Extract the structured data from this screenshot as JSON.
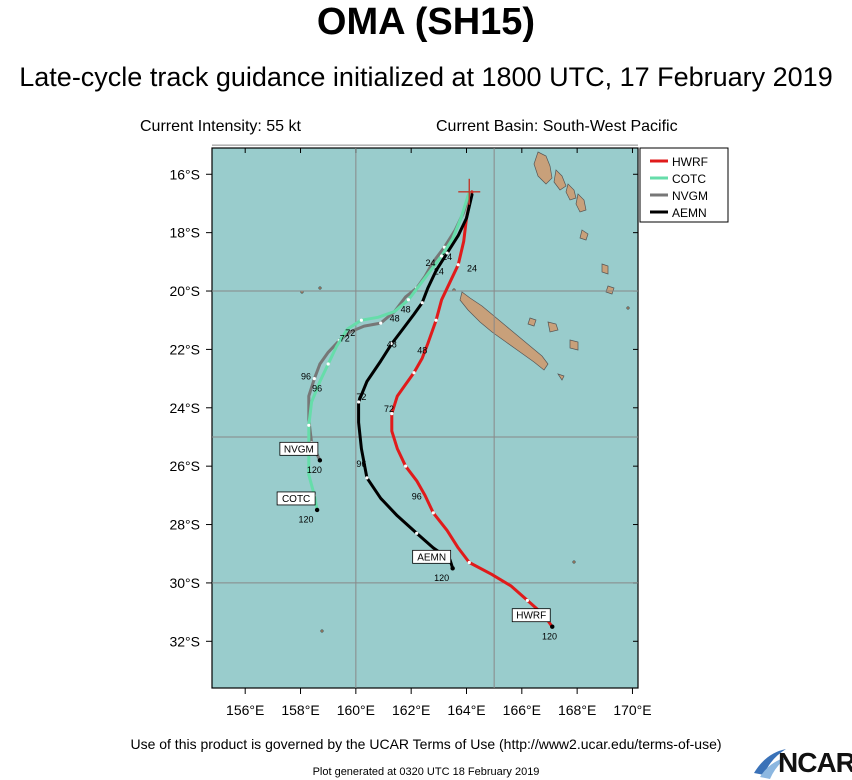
{
  "header": {
    "title": "OMA (SH15)",
    "subtitle": "Late-cycle track guidance initialized at 1800 UTC, 17 February 2019",
    "intensity": "Current Intensity: 55 kt",
    "basin": "Current Basin: South-West Pacific"
  },
  "footer": {
    "terms": "Use of this product is governed by the UCAR Terms of Use (http://www2.ucar.edu/terms-of-use)",
    "generated": "Plot generated at 0320 UTC  18 February 2019",
    "logo_text": "NCAR"
  },
  "colors": {
    "ocean": "#99cccc",
    "land": "#c8a07a",
    "HWRF": "#e01b1b",
    "COTC": "#66ddaa",
    "NVGM": "#777777",
    "AEMN": "#000000"
  },
  "map": {
    "lon_range": [
      154.8,
      170.2
    ],
    "lat_range": [
      -33.6,
      -15.1
    ],
    "lon_ticks": [
      "156°E",
      "158°E",
      "160°E",
      "162°E",
      "164°E",
      "166°E",
      "168°E",
      "170°E"
    ],
    "lat_ticks": [
      "16°S",
      "18°S",
      "20°S",
      "22°S",
      "24°S",
      "26°S",
      "28°S",
      "30°S",
      "32°S"
    ],
    "grid_lons": [
      160,
      165
    ],
    "grid_lats": [
      -15,
      -20,
      -25,
      -30
    ],
    "current_position": {
      "lon": 164.1,
      "lat": -16.6
    },
    "legend": [
      "HWRF",
      "COTC",
      "NVGM",
      "AEMN"
    ]
  },
  "tracks": [
    {
      "name": "HWRF",
      "end_label": "HWRF",
      "end_hour": "120",
      "points": [
        [
          164.2,
          -16.6
        ],
        [
          164.0,
          -17.5
        ],
        [
          163.9,
          -18.3
        ],
        [
          163.7,
          -19.1
        ],
        [
          163.4,
          -19.7
        ],
        [
          163.1,
          -20.3
        ],
        [
          162.9,
          -21.0
        ],
        [
          162.6,
          -21.8
        ],
        [
          162.4,
          -22.3
        ],
        [
          162.1,
          -22.8
        ],
        [
          161.8,
          -23.2
        ],
        [
          161.5,
          -23.6
        ],
        [
          161.3,
          -24.2
        ],
        [
          161.3,
          -24.8
        ],
        [
          161.5,
          -25.4
        ],
        [
          161.8,
          -26.0
        ],
        [
          162.2,
          -26.5
        ],
        [
          162.5,
          -27.0
        ],
        [
          162.8,
          -27.6
        ],
        [
          163.3,
          -28.2
        ],
        [
          163.7,
          -28.8
        ],
        [
          164.1,
          -29.3
        ],
        [
          164.9,
          -29.7
        ],
        [
          165.6,
          -30.1
        ],
        [
          166.2,
          -30.6
        ],
        [
          166.8,
          -31.1
        ],
        [
          167.1,
          -31.5
        ]
      ],
      "labels": [
        {
          "t": "24",
          "lon": 164.2,
          "lat": -19.2
        },
        {
          "t": "48",
          "lon": 162.4,
          "lat": -22.0
        },
        {
          "t": "72",
          "lon": 161.2,
          "lat": -24.0
        },
        {
          "t": "96",
          "lon": 162.2,
          "lat": -27.0
        },
        {
          "t": "120",
          "lon": 167.0,
          "lat": -31.8
        }
      ]
    },
    {
      "name": "AEMN",
      "end_label": "AEMN",
      "end_hour": "120",
      "points": [
        [
          164.2,
          -16.7
        ],
        [
          164.0,
          -17.5
        ],
        [
          163.7,
          -18.1
        ],
        [
          163.3,
          -18.7
        ],
        [
          162.9,
          -19.3
        ],
        [
          162.6,
          -19.9
        ],
        [
          162.4,
          -20.4
        ],
        [
          162.1,
          -20.8
        ],
        [
          161.7,
          -21.3
        ],
        [
          161.3,
          -21.8
        ],
        [
          160.9,
          -22.4
        ],
        [
          160.4,
          -23.1
        ],
        [
          160.1,
          -23.8
        ],
        [
          160.1,
          -24.5
        ],
        [
          160.2,
          -25.4
        ],
        [
          160.4,
          -26.4
        ],
        [
          160.9,
          -27.1
        ],
        [
          161.5,
          -27.7
        ],
        [
          162.2,
          -28.3
        ],
        [
          162.8,
          -28.8
        ],
        [
          163.4,
          -29.2
        ],
        [
          163.5,
          -29.5
        ]
      ],
      "labels": [
        {
          "t": "24",
          "lon": 163.3,
          "lat": -18.8
        },
        {
          "t": "48",
          "lon": 161.3,
          "lat": -21.8
        },
        {
          "t": "72",
          "lon": 160.2,
          "lat": -23.6
        },
        {
          "t": "96",
          "lon": 160.2,
          "lat": -25.9
        },
        {
          "t": "120",
          "lon": 163.1,
          "lat": -29.8
        }
      ]
    },
    {
      "name": "NVGM",
      "end_label": "NVGM",
      "end_hour": "120",
      "points": [
        [
          164.1,
          -16.7
        ],
        [
          163.9,
          -17.3
        ],
        [
          163.6,
          -17.9
        ],
        [
          163.2,
          -18.5
        ],
        [
          162.8,
          -19.0
        ],
        [
          162.5,
          -19.5
        ],
        [
          162.2,
          -19.9
        ],
        [
          161.8,
          -20.2
        ],
        [
          161.4,
          -20.7
        ],
        [
          160.9,
          -21.1
        ],
        [
          160.3,
          -21.2
        ],
        [
          159.8,
          -21.4
        ],
        [
          159.4,
          -21.7
        ],
        [
          159.0,
          -22.1
        ],
        [
          158.7,
          -22.5
        ],
        [
          158.5,
          -23.0
        ],
        [
          158.3,
          -23.6
        ],
        [
          158.3,
          -24.4
        ],
        [
          158.4,
          -25.2
        ],
        [
          158.7,
          -25.8
        ]
      ],
      "labels": [
        {
          "t": "24",
          "lon": 163.0,
          "lat": -19.3
        },
        {
          "t": "48",
          "lon": 161.8,
          "lat": -20.6
        },
        {
          "t": "72",
          "lon": 159.8,
          "lat": -21.4
        },
        {
          "t": "96",
          "lon": 158.2,
          "lat": -22.9
        },
        {
          "t": "120",
          "lon": 158.5,
          "lat": -26.1
        }
      ]
    },
    {
      "name": "COTC",
      "end_label": "COTC",
      "end_hour": "120",
      "points": [
        [
          164.1,
          -16.6
        ],
        [
          163.8,
          -17.5
        ],
        [
          163.5,
          -18.2
        ],
        [
          163.1,
          -18.8
        ],
        [
          162.7,
          -19.3
        ],
        [
          162.3,
          -19.8
        ],
        [
          161.9,
          -20.3
        ],
        [
          161.4,
          -20.7
        ],
        [
          160.8,
          -20.9
        ],
        [
          160.2,
          -21.0
        ],
        [
          159.7,
          -21.3
        ],
        [
          159.3,
          -21.9
        ],
        [
          159.0,
          -22.5
        ],
        [
          158.7,
          -23.1
        ],
        [
          158.4,
          -23.8
        ],
        [
          158.3,
          -24.6
        ],
        [
          158.3,
          -25.5
        ],
        [
          158.3,
          -26.3
        ],
        [
          158.5,
          -27.0
        ],
        [
          158.6,
          -27.5
        ]
      ],
      "labels": [
        {
          "t": "24",
          "lon": 162.7,
          "lat": -19.0
        },
        {
          "t": "48",
          "lon": 161.4,
          "lat": -20.9
        },
        {
          "t": "72",
          "lon": 159.6,
          "lat": -21.6
        },
        {
          "t": "96",
          "lon": 158.6,
          "lat": -23.3
        },
        {
          "t": "120",
          "lon": 158.2,
          "lat": -27.8
        }
      ]
    }
  ]
}
